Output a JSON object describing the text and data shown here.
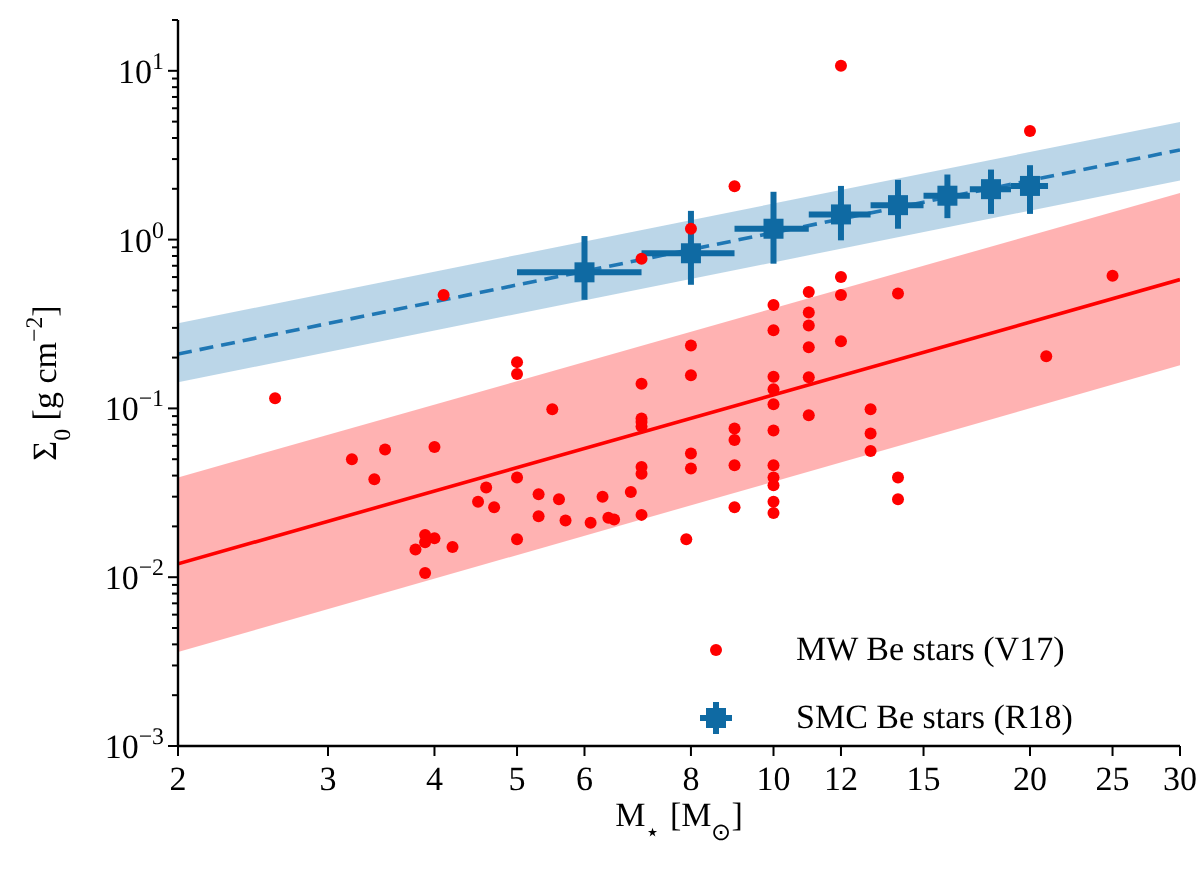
{
  "chart_data": {
    "type": "scatter",
    "xlabel": "M$_{⋆}$ [M$_{⊙}$]",
    "ylabel": "Σ$_{0}$ [g cm$^{−2}$]",
    "log": "xy",
    "xlim": [
      2,
      30
    ],
    "xticks": [
      2,
      3,
      4,
      5,
      6,
      8,
      10,
      12,
      15,
      20,
      25,
      30
    ],
    "ylim": [
      0.001,
      20
    ],
    "yticks": [
      {
        "value": 0.001,
        "label": "10$^{−3}$"
      },
      {
        "value": 0.002,
        "label": null
      },
      {
        "value": 0.003,
        "label": null
      },
      {
        "value": 0.004,
        "label": null
      },
      {
        "value": 0.005,
        "label": null
      },
      {
        "value": 0.006,
        "label": null
      },
      {
        "value": 0.007,
        "label": null
      },
      {
        "value": 0.008,
        "label": null
      },
      {
        "value": 0.009,
        "label": null
      },
      {
        "value": 0.01,
        "label": "10$^{−2}$"
      },
      {
        "value": 0.02,
        "label": null
      },
      {
        "value": 0.03,
        "label": null
      },
      {
        "value": 0.04,
        "label": null
      },
      {
        "value": 0.05,
        "label": null
      },
      {
        "value": 0.06,
        "label": null
      },
      {
        "value": 0.07,
        "label": null
      },
      {
        "value": 0.08,
        "label": null
      },
      {
        "value": 0.09,
        "label": null
      },
      {
        "value": 0.1,
        "label": "10$^{−1}$"
      },
      {
        "value": 0.2,
        "label": null
      },
      {
        "value": 0.3,
        "label": null
      },
      {
        "value": 0.4,
        "label": null
      },
      {
        "value": 0.5,
        "label": null
      },
      {
        "value": 0.6,
        "label": null
      },
      {
        "value": 0.7,
        "label": null
      },
      {
        "value": 0.8,
        "label": null
      },
      {
        "value": 0.9,
        "label": null
      },
      {
        "value": 1,
        "label": "10$^{0}$"
      },
      {
        "value": 2,
        "label": null
      },
      {
        "value": 3,
        "label": null
      },
      {
        "value": 4,
        "label": null
      },
      {
        "value": 5,
        "label": null
      },
      {
        "value": 6,
        "label": null
      },
      {
        "value": 7,
        "label": null
      },
      {
        "value": 8,
        "label": null
      },
      {
        "value": 9,
        "label": null
      },
      {
        "value": 10,
        "label": "10$^{1}$"
      },
      {
        "value": 20,
        "label": null
      }
    ],
    "grid": false,
    "legend": "bottom right",
    "series": [
      {
        "name": "MW Be stars (V17)",
        "type": "scatter",
        "color": "#ff0000",
        "marker": "circle",
        "x": [
          2.6,
          3.2,
          3.4,
          3.5,
          4.0,
          3.8,
          3.9,
          3.9,
          4.0,
          4.2,
          3.9,
          4.1,
          4.5,
          4.6,
          4.7,
          5,
          5,
          5,
          5,
          5.3,
          5.3,
          5.5,
          5.6,
          5.7,
          6.1,
          6.3,
          6.4,
          6.5,
          6.8,
          7,
          7,
          7,
          7,
          7,
          7,
          7,
          7,
          7.9,
          8,
          8,
          8,
          8,
          8,
          9,
          9,
          9,
          9,
          9,
          10,
          10,
          10,
          10,
          10,
          10,
          10,
          10,
          10,
          10,
          10,
          11,
          11,
          11,
          11,
          11,
          11,
          12,
          12,
          12,
          12,
          13,
          13,
          13,
          14,
          14,
          14,
          20,
          20.9,
          25
        ],
        "values": [
          0.115,
          0.05,
          0.038,
          0.057,
          0.059,
          0.0146,
          0.0178,
          0.0161,
          0.017,
          0.0151,
          0.0106,
          0.47,
          0.028,
          0.034,
          0.026,
          0.188,
          0.16,
          0.039,
          0.0168,
          0.031,
          0.023,
          0.099,
          0.029,
          0.0217,
          0.021,
          0.03,
          0.0225,
          0.022,
          0.032,
          0.77,
          0.14,
          0.087,
          0.083,
          0.078,
          0.045,
          0.041,
          0.0234,
          0.0168,
          1.16,
          0.236,
          0.157,
          0.054,
          0.044,
          2.07,
          0.076,
          0.065,
          0.046,
          0.026,
          0.41,
          0.29,
          0.154,
          0.13,
          0.106,
          0.074,
          0.046,
          0.039,
          0.035,
          0.028,
          0.024,
          0.49,
          0.37,
          0.31,
          0.23,
          0.153,
          0.091,
          10.7,
          0.6,
          0.47,
          0.25,
          0.099,
          0.071,
          0.056,
          0.48,
          0.039,
          0.029,
          4.4,
          0.204,
          0.61
        ]
      },
      {
        "name": "SMC Be stars (R18)",
        "type": "scatter",
        "color": "#0f6aa3",
        "marker": "square",
        "x": [
          6,
          8,
          10,
          12,
          14,
          16,
          18,
          20
        ],
        "values": [
          0.64,
          0.83,
          1.16,
          1.41,
          1.6,
          1.82,
          1.99,
          2.08
        ],
        "errors": [
          [
            0.44,
            1.05
          ],
          [
            0.54,
            1.48
          ],
          [
            0.72,
            1.92
          ],
          [
            0.99,
            2.08
          ],
          [
            1.16,
            2.26
          ],
          [
            1.34,
            2.43
          ],
          [
            1.42,
            2.6
          ],
          [
            1.42,
            2.76
          ]
        ],
        "xerrors": [
          [
            5,
            7
          ],
          [
            7,
            9
          ],
          [
            9,
            11
          ],
          [
            11,
            13
          ],
          [
            13,
            15
          ],
          [
            15,
            17
          ],
          [
            17,
            19
          ],
          [
            19,
            21
          ]
        ]
      },
      {
        "type": "line",
        "color": "#ff0000",
        "line_style": "solid",
        "x": [
          2,
          30
        ],
        "values": [
          0.012,
          0.58
        ],
        "lower": [
          0.0036,
          0.18
        ],
        "upper": [
          0.039,
          1.89
        ]
      },
      {
        "type": "line",
        "color": "#1f77b4",
        "line_style": "dashed",
        "x": [
          2,
          30
        ],
        "values": [
          0.21,
          3.4
        ],
        "lower": [
          0.143,
          2.24
        ],
        "upper": [
          0.32,
          4.98
        ]
      }
    ]
  }
}
